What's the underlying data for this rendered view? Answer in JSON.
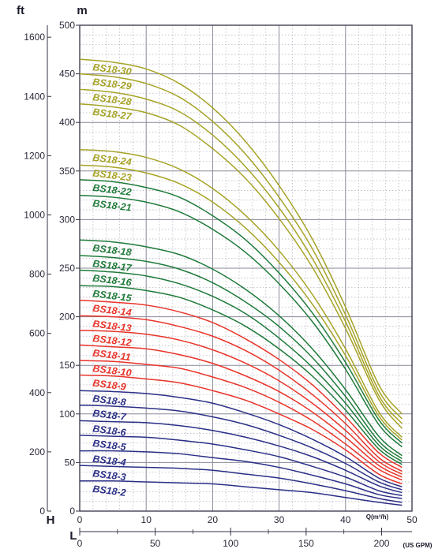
{
  "chart_data": {
    "type": "line",
    "title": "",
    "colors": {
      "olive": "#a6a326",
      "green": "#1f7a3a",
      "red": "#e8342a",
      "navy": "#2b2f86",
      "grid_major": "#8a8a9a",
      "grid_minor": "#b8b8c4",
      "axis": "#333344"
    },
    "axes": {
      "left_unit": "ft",
      "right_unit": "m",
      "H_label": "H",
      "L_label": "L",
      "q_label": "Q(m³/h)",
      "gpm_label": "(US GPM)",
      "m_range": [
        0,
        500
      ],
      "ft_range": [
        0,
        1640.4
      ],
      "q_range": [
        0,
        50
      ],
      "gpm_range": [
        0,
        220.1
      ],
      "m_ticks": [
        "0",
        "50",
        "100",
        "150",
        "200",
        "250",
        "300",
        "350",
        "400",
        "450",
        "500"
      ],
      "ft_ticks": [
        "0",
        "200",
        "400",
        "600",
        "800",
        "1000",
        "1200",
        "1400",
        "1600"
      ],
      "q_ticks": [
        "0",
        "10",
        "20",
        "30",
        "40",
        "50"
      ],
      "gpm_ticks": [
        "0",
        "50",
        "100",
        "150",
        "200"
      ],
      "grid": true
    },
    "q_points": [
      0,
      5,
      10,
      15,
      20,
      25,
      30,
      35,
      40,
      45,
      48.5
    ],
    "series": [
      {
        "name": "BS18-30",
        "color_key": "olive",
        "values": [
          465,
          462,
          455,
          440,
          415,
          380,
          335,
          280,
          210,
          130,
          100
        ]
      },
      {
        "name": "BS18-29",
        "color_key": "olive",
        "values": [
          450,
          447,
          440,
          426,
          401,
          367,
          323,
          270,
          202,
          124,
          95
        ]
      },
      {
        "name": "BS18-28",
        "color_key": "olive",
        "values": [
          434,
          431,
          424,
          411,
          387,
          354,
          312,
          260,
          195,
          119,
          90
        ]
      },
      {
        "name": "BS18-27",
        "color_key": "olive",
        "values": [
          419,
          416,
          410,
          397,
          373,
          342,
          301,
          251,
          188,
          115,
          85
        ]
      },
      {
        "name": "BS18-24",
        "color_key": "olive",
        "values": [
          372,
          370,
          364,
          352,
          332,
          304,
          268,
          223,
          167,
          102,
          76
        ]
      },
      {
        "name": "BS18-23",
        "color_key": "olive",
        "values": [
          356,
          354,
          348,
          337,
          318,
          291,
          256,
          213,
          160,
          98,
          73
        ]
      },
      {
        "name": "BS18-22",
        "color_key": "green",
        "values": [
          341,
          339,
          333,
          323,
          304,
          279,
          245,
          204,
          153,
          94,
          70
        ]
      },
      {
        "name": "BS18-21",
        "color_key": "green",
        "values": [
          325,
          323,
          318,
          308,
          290,
          266,
          234,
          195,
          146,
          89,
          66
        ]
      },
      {
        "name": "BS18-18",
        "color_key": "green",
        "values": [
          279,
          277,
          272,
          264,
          249,
          228,
          201,
          167,
          125,
          77,
          57
        ]
      },
      {
        "name": "BS18-17",
        "color_key": "green",
        "values": [
          263,
          261,
          257,
          249,
          235,
          215,
          190,
          158,
          118,
          72,
          54
        ]
      },
      {
        "name": "BS18-16",
        "color_key": "green",
        "values": [
          248,
          246,
          242,
          234,
          221,
          203,
          178,
          148,
          111,
          68,
          51
        ]
      },
      {
        "name": "BS18-15",
        "color_key": "green",
        "values": [
          232,
          231,
          227,
          220,
          207,
          190,
          167,
          139,
          104,
          64,
          48
        ]
      },
      {
        "name": "BS18-14",
        "color_key": "red",
        "values": [
          217,
          215,
          212,
          205,
          194,
          177,
          156,
          130,
          97,
          60,
          45
        ]
      },
      {
        "name": "BS18-13",
        "color_key": "red",
        "values": [
          201,
          200,
          197,
          190,
          180,
          165,
          145,
          120,
          90,
          55,
          41
        ]
      },
      {
        "name": "BS18-12",
        "color_key": "red",
        "values": [
          186,
          185,
          182,
          176,
          166,
          152,
          134,
          111,
          83,
          51,
          38
        ]
      },
      {
        "name": "BS18-11",
        "color_key": "red",
        "values": [
          171,
          169,
          167,
          161,
          152,
          139,
          123,
          102,
          76,
          47,
          35
        ]
      },
      {
        "name": "BS18-10",
        "color_key": "red",
        "values": [
          155,
          154,
          151,
          147,
          138,
          127,
          112,
          93,
          69,
          43,
          32
        ]
      },
      {
        "name": "BS18-9",
        "color_key": "red",
        "values": [
          140,
          139,
          136,
          132,
          124,
          114,
          100,
          84,
          63,
          38,
          28
        ]
      },
      {
        "name": "BS18-8",
        "color_key": "navy",
        "values": [
          124,
          123,
          121,
          117,
          111,
          101,
          89,
          74,
          56,
          34,
          25
        ]
      },
      {
        "name": "BS18-7",
        "color_key": "navy",
        "values": [
          109,
          108,
          106,
          103,
          97,
          89,
          78,
          65,
          49,
          30,
          22
        ]
      },
      {
        "name": "BS18-6",
        "color_key": "navy",
        "values": [
          93,
          92,
          91,
          88,
          83,
          76,
          67,
          56,
          42,
          26,
          19
        ]
      },
      {
        "name": "BS18-5",
        "color_key": "navy",
        "values": [
          78,
          77,
          76,
          73,
          69,
          63,
          56,
          46,
          35,
          21,
          16
        ]
      },
      {
        "name": "BS18-4",
        "color_key": "navy",
        "values": [
          62,
          62,
          61,
          59,
          55,
          51,
          45,
          37,
          28,
          17,
          13
        ]
      },
      {
        "name": "BS18-3",
        "color_key": "navy",
        "values": [
          47,
          46,
          45,
          44,
          42,
          38,
          34,
          28,
          21,
          13,
          9
        ]
      },
      {
        "name": "BS18-2",
        "color_key": "navy",
        "values": [
          31,
          31,
          30,
          29,
          28,
          25,
          22,
          19,
          14,
          9,
          6
        ]
      }
    ]
  }
}
